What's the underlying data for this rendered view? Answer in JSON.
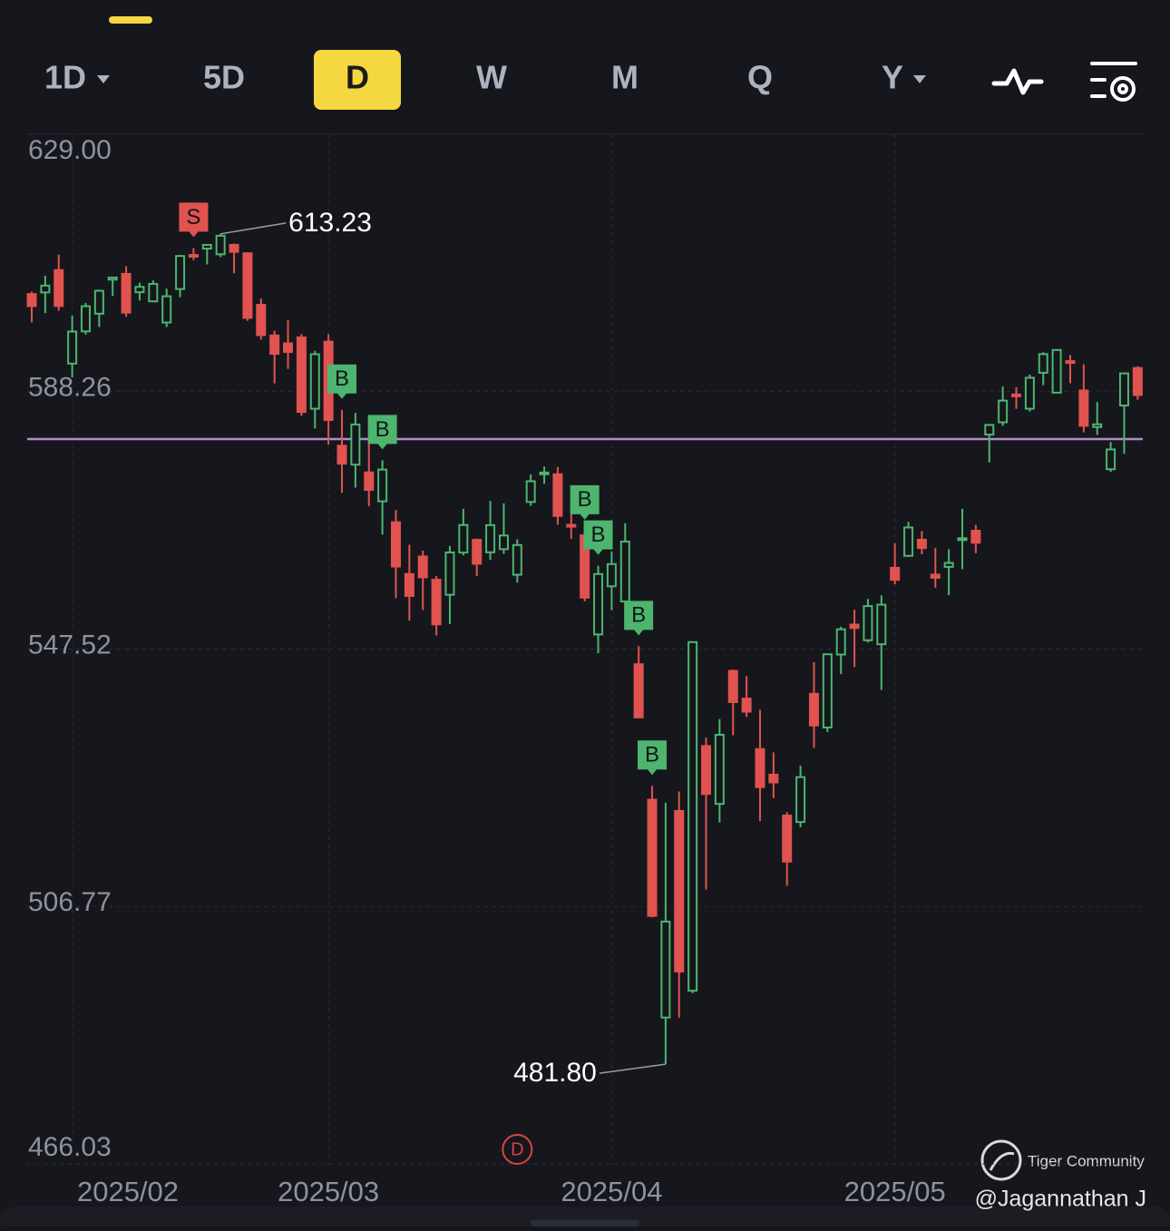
{
  "toolbar": {
    "tabs": [
      "1D",
      "5D",
      "D",
      "W",
      "M",
      "Q",
      "Y"
    ]
  },
  "chart_data": {
    "type": "candlestick",
    "up_color": "#4db56e",
    "down_color": "#e0534f",
    "ylim": [
      466.03,
      629.0
    ],
    "yticks": [
      {
        "value": 629.0,
        "label": "629.00"
      },
      588.26,
      547.52,
      506.77,
      466.03
    ],
    "grid": true,
    "reference_line": {
      "value": 580.76,
      "color": "#b48bc9"
    },
    "annotations": [
      {
        "text": "613.23",
        "value": 613.23
      },
      {
        "text": "481.80",
        "value": 481.8
      }
    ],
    "categories": [
      null,
      null,
      null,
      "2025/02",
      null,
      null,
      null,
      null,
      null,
      null,
      null,
      null,
      null,
      null,
      null,
      null,
      null,
      null,
      null,
      null,
      null,
      null,
      "2025/03",
      null,
      null,
      null,
      null,
      null,
      null,
      null,
      null,
      null,
      null,
      null,
      null,
      null,
      null,
      null,
      null,
      null,
      null,
      null,
      null,
      "2025/04",
      null,
      null,
      null,
      null,
      null,
      null,
      null,
      null,
      null,
      null,
      null,
      null,
      null,
      null,
      null,
      null,
      null,
      null,
      null,
      null,
      "2025/05",
      null,
      null,
      null,
      null,
      null,
      null,
      null,
      null,
      null,
      null,
      null,
      null,
      null,
      null,
      null,
      null,
      null,
      null
    ],
    "open": [
      603.7,
      603.96,
      607.5,
      592.7,
      597.8,
      600.6,
      605.99,
      606.9,
      604.0,
      602.55,
      599.2,
      604.5,
      609.9,
      610.9,
      610.0,
      611.5,
      610.16,
      602.0,
      597.15,
      595.9,
      596.85,
      585.56,
      596.18,
      579.7,
      576.7,
      575.48,
      570.9,
      567.59,
      559.4,
      562.17,
      558.49,
      556.11,
      562.79,
      564.8,
      562.83,
      563.33,
      559.28,
      570.8,
      575.3,
      575.19,
      567.18,
      565.53,
      549.83,
      557.45,
      555.05,
      545.11,
      523.67,
      489.19,
      521.9,
      493.44,
      532.17,
      523.01,
      544.05,
      539.67,
      531.68,
      527.64,
      521.16,
      520.14,
      540.43,
      535.1,
      546.65,
      551.39,
      548.91,
      548.28,
      560.37,
      562.27,
      564.82,
      559.3,
      560.52,
      564.89,
      566.25,
      581.46,
      583.41,
      587.81,
      585.56,
      591.25,
      588.1,
      593.09,
      588.44,
      582.66,
      575.98,
      586.07,
      592.0
    ],
    "high": [
      604.1,
      606.6,
      609.96,
      600.3,
      602.3,
      604.4,
      606.45,
      608.1,
      605.5,
      605.86,
      604.55,
      609.9,
      610.99,
      611.49,
      613.23,
      611.7,
      610.3,
      603.0,
      597.9,
      599.58,
      597.35,
      594.72,
      597.34,
      585.39,
      584.88,
      580.17,
      577.39,
      569.54,
      564.02,
      563.11,
      559.1,
      563.83,
      569.71,
      565.02,
      570.95,
      570.57,
      564.89,
      575.15,
      576.41,
      576.33,
      570.9,
      566.27,
      560.71,
      562.94,
      567.42,
      547.97,
      525.87,
      523.17,
      524.98,
      548.62,
      533.5,
      536.43,
      544.28,
      543.23,
      537.89,
      531.17,
      521.7,
      529.04,
      545.43,
      546.7,
      551.05,
      553.75,
      555.45,
      556.0,
      564.27,
      567.65,
      566.18,
      563.51,
      563.3,
      569.72,
      567.17,
      583.0,
      589.08,
      588.97,
      590.97,
      594.5,
      594.99,
      594.05,
      592.58,
      586.62,
      580.29,
      591.31,
      592.27
    ],
    "low": [
      599.2,
      600.7,
      601.05,
      590.5,
      597.3,
      598.5,
      603.4,
      600.1,
      602.7,
      602.43,
      598.5,
      603.2,
      609.07,
      608.4,
      609.56,
      607.0,
      599.47,
      596.5,
      589.56,
      591.86,
      584.43,
      582.44,
      579.9,
      572.25,
      573.08,
      570.12,
      565.63,
      555.59,
      552.02,
      553.69,
      549.68,
      551.49,
      562.35,
      559.06,
      561.63,
      562.6,
      558.03,
      570.2,
      573.69,
      567.19,
      564.94,
      555.07,
      546.87,
      553.68,
      554.81,
      536.7,
      505.06,
      481.8,
      489.16,
      493.06,
      509.44,
      520.07,
      533.88,
      536.79,
      520.29,
      523.91,
      510.06,
      519.31,
      531.89,
      534.4,
      543.56,
      544.68,
      548.55,
      541.06,
      557.77,
      562.1,
      562.52,
      557.22,
      556.05,
      560.15,
      562.7,
      577.04,
      582.84,
      585.54,
      585.1,
      589.28,
      588.02,
      589.6,
      581.82,
      581.41,
      575.57,
      578.43,
      586.98
    ],
    "close": [
      601.8,
      605.04,
      601.82,
      597.77,
      601.78,
      604.22,
      606.32,
      600.77,
      604.85,
      605.31,
      603.36,
      609.73,
      609.7,
      611.49,
      612.93,
      610.38,
      599.94,
      597.21,
      594.24,
      594.54,
      585.05,
      594.18,
      583.77,
      576.86,
      583.06,
      572.71,
      575.92,
      560.58,
      555.92,
      558.87,
      551.42,
      562.81,
      567.15,
      561.02,
      567.13,
      565.49,
      563.98,
      574.08,
      575.46,
      568.59,
      567.08,
      555.66,
      559.39,
      560.97,
      564.52,
      536.7,
      505.28,
      504.38,
      496.48,
      548.62,
      524.58,
      533.94,
      539.12,
      537.61,
      525.66,
      526.41,
      513.88,
      527.25,
      535.42,
      546.69,
      550.64,
      550.85,
      554.32,
      554.54,
      558.47,
      566.76,
      563.51,
      558.8,
      561.15,
      565.06,
      564.34,
      582.99,
      586.84,
      587.59,
      590.46,
      594.2,
      594.85,
      592.85,
      582.86,
      583.09,
      579.11,
      591.15,
      587.72
    ],
    "signals": [
      null,
      null,
      null,
      null,
      null,
      null,
      null,
      null,
      null,
      null,
      null,
      null,
      "S",
      null,
      null,
      null,
      null,
      null,
      null,
      null,
      null,
      null,
      null,
      "B",
      null,
      null,
      "B",
      null,
      null,
      null,
      null,
      null,
      null,
      null,
      null,
      null,
      null,
      null,
      null,
      null,
      null,
      "B",
      "B",
      null,
      null,
      "B",
      "B",
      null,
      null,
      null,
      null,
      null,
      null,
      null,
      null,
      null,
      null,
      null,
      null,
      null,
      null,
      null,
      null,
      null,
      null,
      null,
      null,
      null,
      null,
      null,
      null,
      null,
      null,
      null,
      null,
      null,
      null,
      null,
      null,
      null,
      null,
      null,
      null
    ],
    "events": [
      null,
      null,
      null,
      null,
      null,
      null,
      null,
      null,
      null,
      null,
      null,
      null,
      null,
      null,
      null,
      null,
      null,
      null,
      null,
      null,
      null,
      null,
      null,
      null,
      null,
      null,
      null,
      null,
      null,
      null,
      null,
      null,
      null,
      null,
      null,
      null,
      "D",
      null,
      null,
      null,
      null,
      null,
      null,
      null,
      null,
      null,
      null,
      null,
      null,
      null,
      null,
      null,
      null,
      null,
      null,
      null,
      null,
      null,
      null,
      null,
      null,
      null,
      null,
      null,
      null,
      null,
      null,
      null,
      null,
      null,
      null,
      null,
      null,
      null,
      null,
      null,
      null,
      null,
      null,
      null,
      null,
      null,
      null
    ]
  },
  "watermark": {
    "brand": "Tiger Community",
    "author": "@Jagannathan J"
  }
}
